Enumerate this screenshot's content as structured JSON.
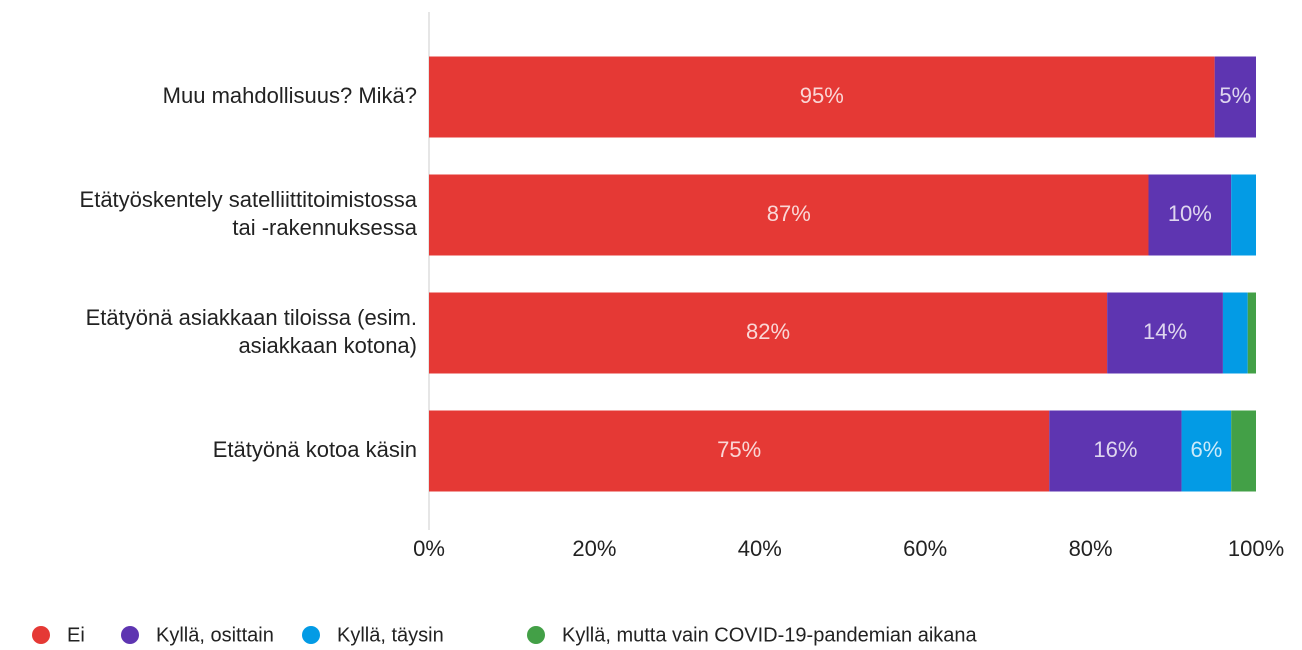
{
  "chart_data": {
    "type": "stacked_barh",
    "categories": [
      [
        "Muu mahdollisuus? Mikä?"
      ],
      [
        "Etätyöskentely satelliittitoimistossa",
        "tai -rakennuksessa"
      ],
      [
        "Etätyönä asiakkaan tiloissa (esim.",
        "asiakkaan kotona)"
      ],
      [
        "Etätyönä kotoa käsin"
      ]
    ],
    "series": [
      {
        "name": "Ei",
        "color": "#e53935",
        "values": [
          95,
          87,
          82,
          75
        ],
        "value_labels": [
          "95%",
          "87%",
          "82%",
          "75%"
        ]
      },
      {
        "name": "Kyllä, osittain",
        "color": "#5e35b1",
        "values": [
          5,
          10,
          14,
          16
        ],
        "value_labels": [
          "5%",
          "10%",
          "14%",
          "16%"
        ]
      },
      {
        "name": "Kyllä, täysin",
        "color": "#039be5",
        "values": [
          0,
          3,
          3,
          6
        ],
        "value_labels": [
          null,
          null,
          null,
          "6%"
        ]
      },
      {
        "name": "Kyllä, mutta vain COVID-19-pandemian aikana",
        "color": "#43a047",
        "values": [
          0,
          0,
          1,
          3
        ],
        "value_labels": [
          null,
          null,
          null,
          null
        ]
      }
    ],
    "xlim": [
      0,
      100
    ],
    "xticks": [
      {
        "value": 0,
        "label": "0%"
      },
      {
        "value": 20,
        "label": "20%"
      },
      {
        "value": 40,
        "label": "40%"
      },
      {
        "value": 60,
        "label": "60%"
      },
      {
        "value": 80,
        "label": "80%"
      },
      {
        "value": 100,
        "label": "100%"
      }
    ],
    "legend": "bottom"
  }
}
